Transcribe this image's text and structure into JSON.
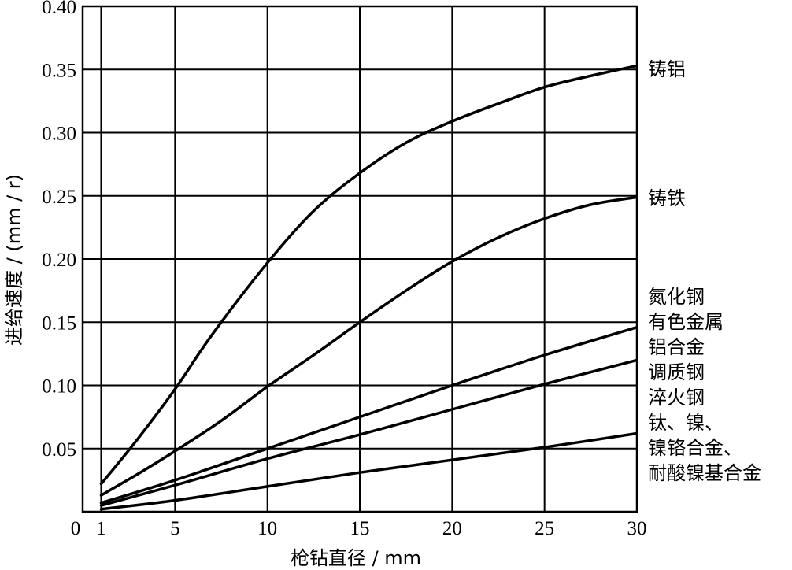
{
  "chart_data": {
    "type": "line",
    "xlabel": "枪钻直径 / mm",
    "ylabel": "进给速度 / (mm / r)",
    "xlim": [
      0,
      30
    ],
    "ylim": [
      0,
      0.4
    ],
    "x_origin_label": "0",
    "x_ticks": [
      1,
      5,
      10,
      15,
      20,
      25,
      30
    ],
    "x_tick_labels": [
      "1",
      "5",
      "10",
      "15",
      "20",
      "25",
      "30"
    ],
    "y_ticks": [
      0.05,
      0.1,
      0.15,
      0.2,
      0.25,
      0.3,
      0.35,
      0.4
    ],
    "y_tick_labels": [
      "0.05",
      "0.10",
      "0.15",
      "0.20",
      "0.25",
      "0.30",
      "0.35",
      "0.40"
    ],
    "grid": true,
    "series": [
      {
        "name": "铸铝",
        "x": [
          1,
          3,
          5,
          7,
          10,
          12.5,
          15,
          17.5,
          20,
          22.5,
          25,
          27.5,
          30
        ],
        "y": [
          0.022,
          0.058,
          0.097,
          0.14,
          0.197,
          0.238,
          0.268,
          0.292,
          0.309,
          0.323,
          0.336,
          0.345,
          0.353
        ]
      },
      {
        "name": "铸铁",
        "x": [
          1,
          3,
          5,
          7.5,
          10,
          12.5,
          15,
          17.5,
          20,
          22.5,
          25,
          27.5,
          30
        ],
        "y": [
          0.013,
          0.03,
          0.048,
          0.072,
          0.099,
          0.124,
          0.15,
          0.175,
          0.198,
          0.217,
          0.232,
          0.243,
          0.249
        ]
      },
      {
        "name": "氮化钢 有色金属 铝合金",
        "x": [
          1,
          5,
          10,
          15,
          20,
          25,
          30
        ],
        "y": [
          0.007,
          0.025,
          0.05,
          0.075,
          0.1,
          0.124,
          0.146
        ]
      },
      {
        "name": "调质钢 淬火钢",
        "x": [
          1,
          5,
          10,
          15,
          20,
          25,
          30
        ],
        "y": [
          0.005,
          0.021,
          0.042,
          0.061,
          0.081,
          0.101,
          0.12
        ]
      },
      {
        "name": "钛、镍、镍铬合金、耐酸镍基合金",
        "x": [
          1,
          5,
          10,
          15,
          20,
          25,
          30
        ],
        "y": [
          0.002,
          0.009,
          0.02,
          0.031,
          0.041,
          0.051,
          0.062
        ]
      }
    ]
  },
  "labels": {
    "cast_aluminum": "铸铝",
    "cast_iron": "铸铁",
    "group3": [
      "氮化钢",
      "有色金属",
      "铝合金"
    ],
    "group4": [
      "调质钢",
      "淬火钢"
    ],
    "group5": [
      "钛、镍、",
      "镍铬合金、",
      "耐酸镍基合金"
    ]
  }
}
